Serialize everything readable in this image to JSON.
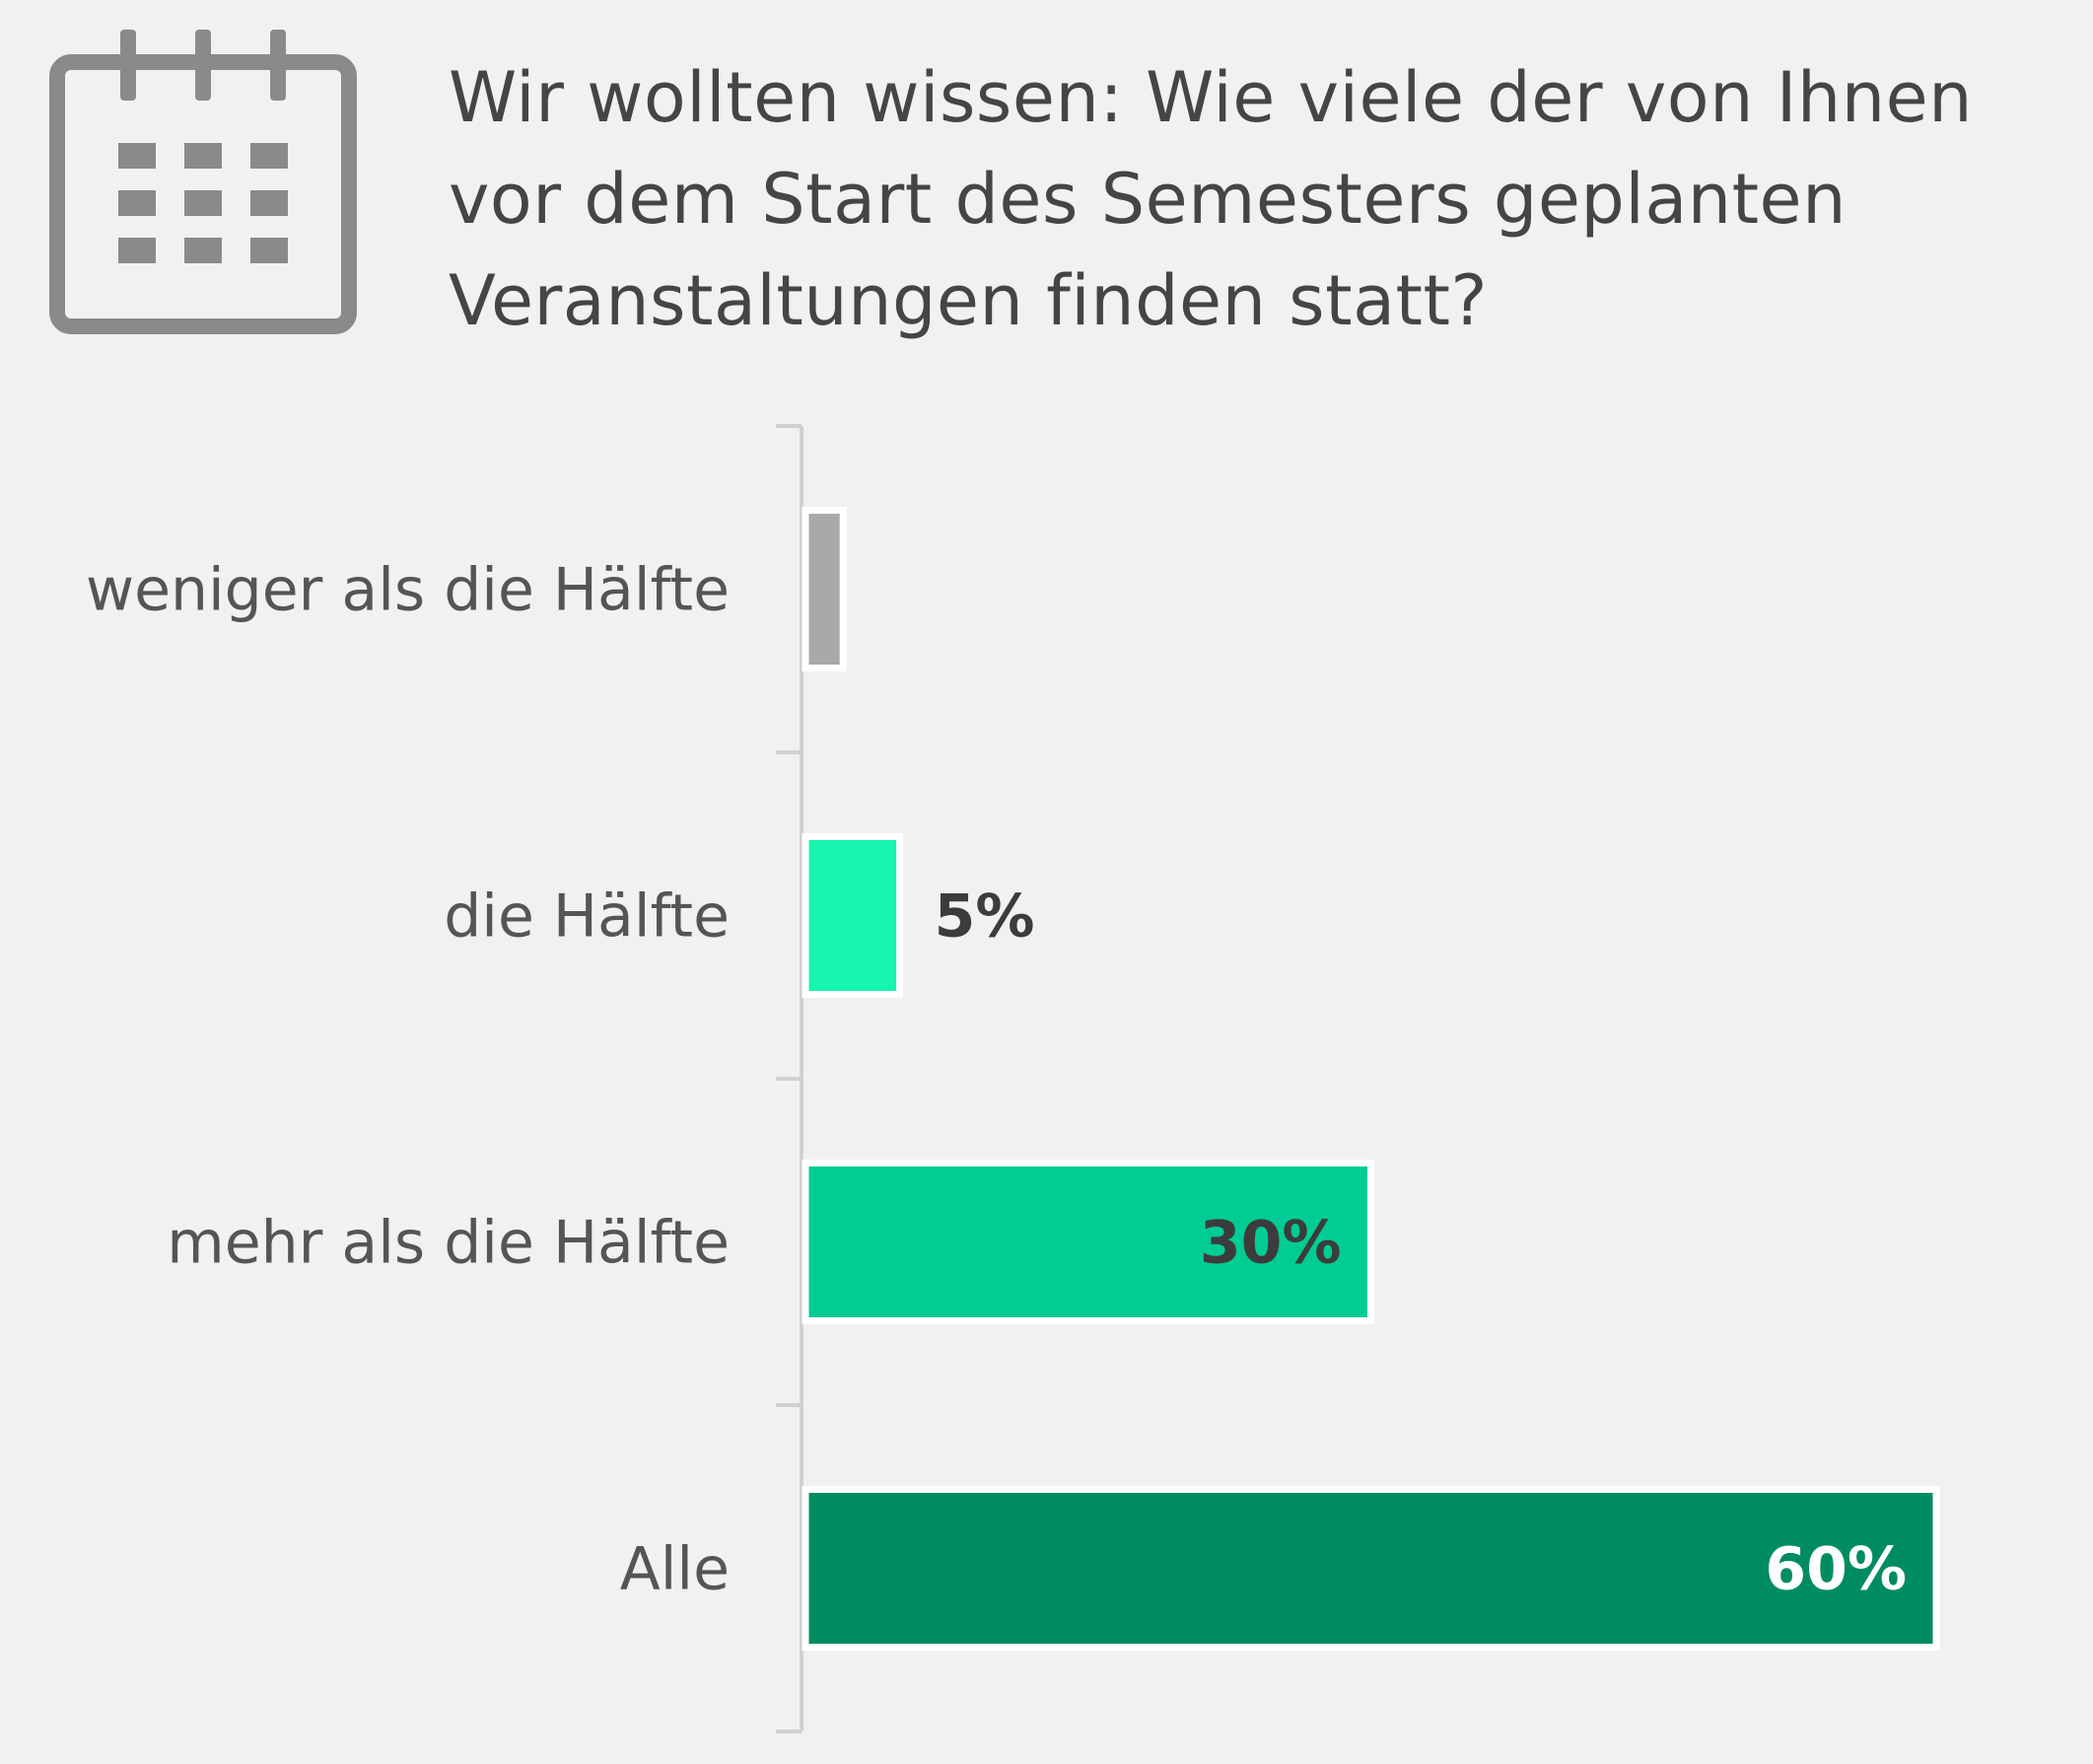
{
  "header": {
    "title": "Wir wollten wissen: Wie viele der von Ihnen\nvor dem Start des Semesters geplanten\nVeranstaltungen finden statt?",
    "icon": "calendar-icon"
  },
  "colors": {
    "background": "#f1f1f1",
    "axis": "#d0d0d0",
    "icon": "#8a8a8a"
  },
  "chart_data": {
    "type": "bar",
    "orientation": "horizontal",
    "title": "Wir wollten wissen: Wie viele der von Ihnen vor dem Start des Semesters geplanten Veranstaltungen finden statt?",
    "categories": [
      "weniger als die Hälfte",
      "die Hälfte",
      "mehr als die Hälfte",
      "Alle"
    ],
    "values": [
      2,
      5,
      30,
      60
    ],
    "value_labels": [
      "",
      "5%",
      "30%",
      "60%"
    ],
    "colors": [
      "#a9a9a9",
      "#17f5b0",
      "#00cc93",
      "#008c62"
    ],
    "label_colors": [
      "#3c3c3c",
      "#3c3c3c",
      "#3c3c3c",
      "#ffffff"
    ],
    "unit": "%",
    "xlim": [
      0,
      60
    ],
    "grid": false,
    "legend": "none"
  }
}
